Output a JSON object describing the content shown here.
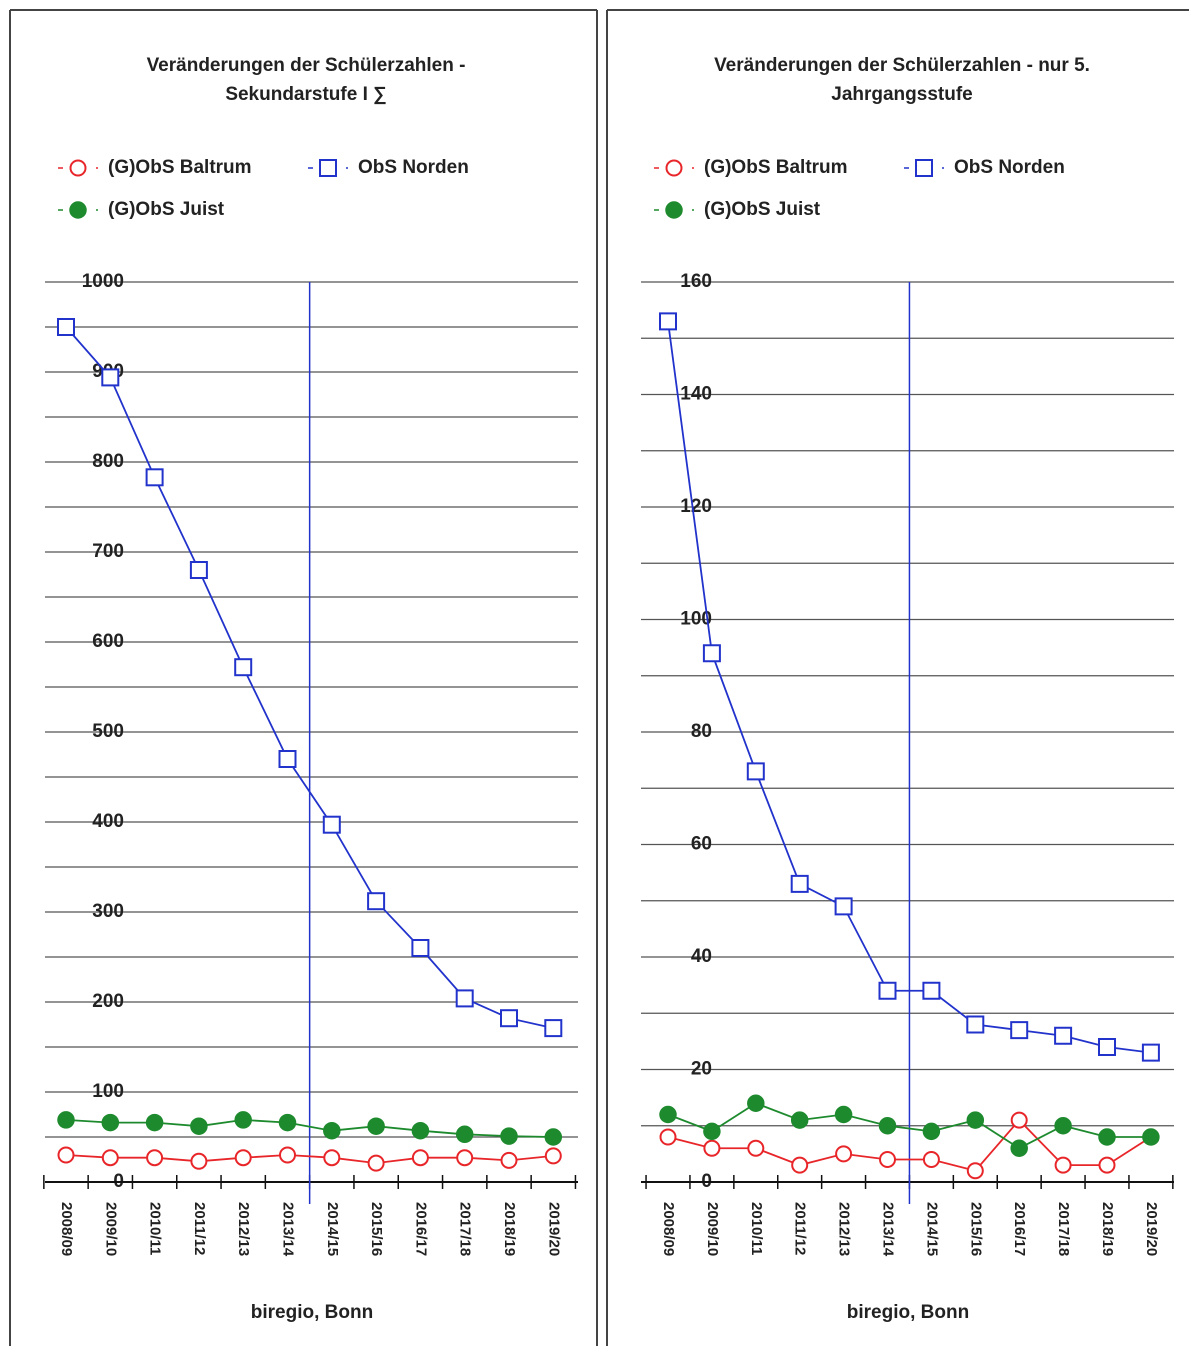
{
  "chart_data": [
    {
      "type": "line",
      "title": [
        "Veränderungen der Schülerzahlen -",
        "Sekundarstufe I ∑"
      ],
      "categories": [
        "2008/09",
        "2009/10",
        "2010/11",
        "2011/12",
        "2012/13",
        "2013/14",
        "2014/15",
        "2015/16",
        "2016/17",
        "2017/18",
        "2018/19",
        "2019/20"
      ],
      "series": [
        {
          "name": "(G)ObS Baltrum",
          "color": "#e8262a",
          "marker": "open-circle",
          "values": [
            30,
            27,
            27,
            23,
            27,
            30,
            27,
            21,
            27,
            27,
            24,
            29
          ]
        },
        {
          "name": "ObS Norden",
          "color": "#2233cc",
          "marker": "open-square",
          "values": [
            950,
            894,
            783,
            680,
            572,
            470,
            397,
            312,
            260,
            204,
            182,
            171
          ]
        },
        {
          "name": "(G)ObS Juist",
          "color": "#1e8a2e",
          "marker": "filled-circle",
          "values": [
            69,
            66,
            66,
            62,
            69,
            66,
            57,
            62,
            57,
            53,
            51,
            50
          ]
        }
      ],
      "ylim": [
        0,
        1000
      ],
      "yticks": [
        0,
        100,
        200,
        300,
        400,
        500,
        600,
        700,
        800,
        900,
        1000
      ],
      "minor_yticks": [
        50,
        150,
        250,
        350,
        450,
        550,
        650,
        750,
        850,
        950
      ],
      "grid": true,
      "source": "biregio, Bonn"
    },
    {
      "type": "line",
      "title": [
        "Veränderungen der Schülerzahlen - nur 5.",
        "Jahrgangsstufe"
      ],
      "categories": [
        "2008/09",
        "2009/10",
        "2010/11",
        "2011/12",
        "2012/13",
        "2013/14",
        "2014/15",
        "2015/16",
        "2016/17",
        "2017/18",
        "2018/19",
        "2019/20"
      ],
      "series": [
        {
          "name": "(G)ObS Baltrum",
          "color": "#e8262a",
          "marker": "open-circle",
          "values": [
            8,
            6,
            6,
            3,
            5,
            4,
            4,
            2,
            11,
            3,
            3,
            8
          ]
        },
        {
          "name": "ObS Norden",
          "color": "#2233cc",
          "marker": "open-square",
          "values": [
            153,
            94,
            73,
            53,
            49,
            34,
            34,
            28,
            27,
            26,
            24,
            23
          ]
        },
        {
          "name": "(G)ObS Juist",
          "color": "#1e8a2e",
          "marker": "filled-circle",
          "values": [
            12,
            9,
            14,
            11,
            12,
            10,
            9,
            11,
            6,
            10,
            8,
            8
          ]
        }
      ],
      "ylim": [
        0,
        160
      ],
      "yticks": [
        0,
        20,
        40,
        60,
        80,
        100,
        120,
        140,
        160
      ],
      "minor_yticks": [
        10,
        30,
        50,
        70,
        90,
        110,
        130,
        150
      ],
      "grid": true,
      "source": "biregio, Bonn"
    }
  ]
}
